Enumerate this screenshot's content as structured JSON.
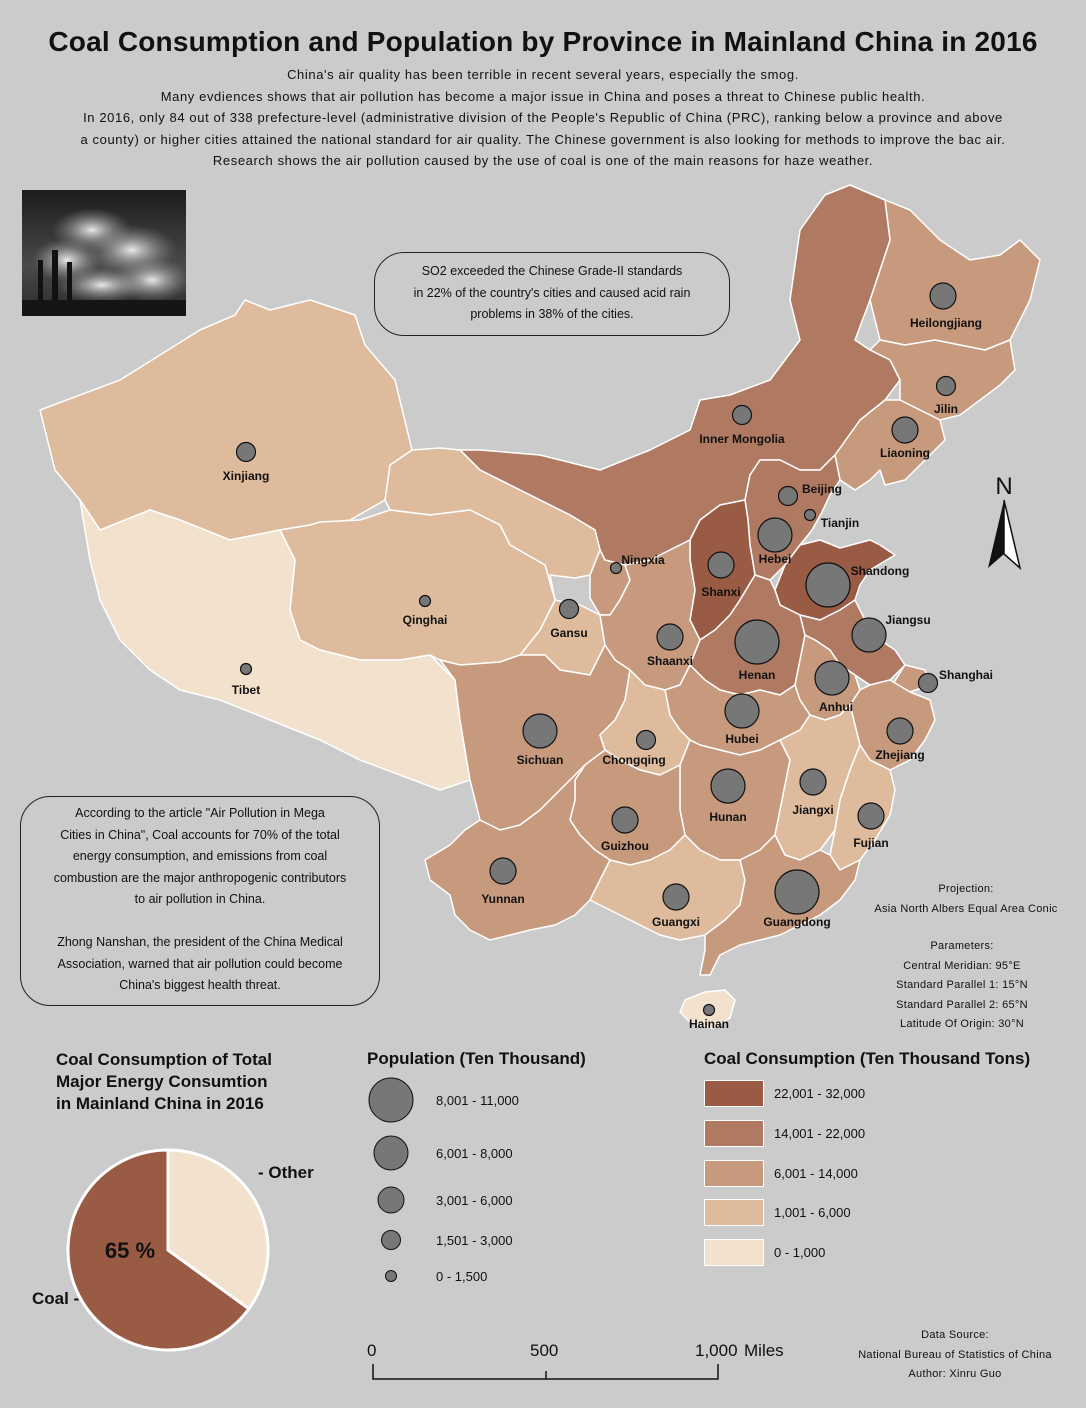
{
  "title": "Coal Consumption and Population by Province in Mainland China in 2016",
  "intro_lines": [
    "China's air quality has been terrible in recent several years, especially the smog.",
    "Many evdiences shows that air pollution has become a major issue in China and poses a threat to Chinese public health.",
    "In 2016, only 84 out of 338 prefecture-level (administrative division of the People's Republic of China (PRC), ranking below a province and above",
    "a county) or higher cities attained the national standard for air quality. The Chinese government is also looking for methods to improve the bac air.",
    "Research shows the air pollution caused by the use of coal is one of the main reasons for haze weather."
  ],
  "so2_note": [
    "SO2 exceeded the Chinese Grade-II standards",
    "in 22% of the country's cities and caused acid rain",
    "problems in 38% of the cities."
  ],
  "article_note": [
    "According to the article \"Air Pollution in Mega",
    "Cities in China\", Coal accounts for 70% of the total",
    "energy consumption, and emissions from coal",
    "combustion are the major anthropogenic contributors",
    "to air pollution in China.",
    "",
    "Zhong Nanshan, the president of the China Medical",
    "Association, warned that air pollution could become",
    "China's biggest health threat."
  ],
  "north_label": "N",
  "projection": {
    "heading": "Projection:",
    "name": "Asia North Albers Equal Area Conic",
    "params_heading": "Parameters:",
    "params": [
      "Central Meridian: 95°E",
      "Standard Parallel 1: 15°N",
      "Standard Parallel 2: 65°N",
      "Latitude Of Origin: 30°N"
    ]
  },
  "colors": {
    "class5": "#9a5b45",
    "class4": "#b07a62",
    "class3": "#c7997d",
    "class2": "#ddbb9c",
    "class1": "#f2e2cd",
    "circle": "#777777",
    "background": "#cbcbcb"
  },
  "provinces": [
    {
      "name": "Heilongjiang",
      "coal_class": 3,
      "pop_class": 3
    },
    {
      "name": "Jilin",
      "coal_class": 3,
      "pop_class": 2
    },
    {
      "name": "Liaoning",
      "coal_class": 3,
      "pop_class": 3
    },
    {
      "name": "Inner Mongolia",
      "coal_class": 4,
      "pop_class": 2
    },
    {
      "name": "Beijing",
      "coal_class": 2,
      "pop_class": 2
    },
    {
      "name": "Tianjin",
      "coal_class": 3,
      "pop_class": 1
    },
    {
      "name": "Hebei",
      "coal_class": 4,
      "pop_class": 4
    },
    {
      "name": "Shanxi",
      "coal_class": 5,
      "pop_class": 3
    },
    {
      "name": "Shandong",
      "coal_class": 5,
      "pop_class": 5
    },
    {
      "name": "Ningxia",
      "coal_class": 3,
      "pop_class": 1
    },
    {
      "name": "Gansu",
      "coal_class": 2,
      "pop_class": 2
    },
    {
      "name": "Shaanxi",
      "coal_class": 3,
      "pop_class": 3
    },
    {
      "name": "Henan",
      "coal_class": 4,
      "pop_class": 5
    },
    {
      "name": "Jiangsu",
      "coal_class": 4,
      "pop_class": 4
    },
    {
      "name": "Shanghai",
      "coal_class": 3,
      "pop_class": 2
    },
    {
      "name": "Anhui",
      "coal_class": 3,
      "pop_class": 4
    },
    {
      "name": "Hubei",
      "coal_class": 3,
      "pop_class": 4
    },
    {
      "name": "Zhejiang",
      "coal_class": 3,
      "pop_class": 3
    },
    {
      "name": "Xinjiang",
      "coal_class": 2,
      "pop_class": 2
    },
    {
      "name": "Qinghai",
      "coal_class": 2,
      "pop_class": 1
    },
    {
      "name": "Tibet",
      "coal_class": 1,
      "pop_class": 1
    },
    {
      "name": "Sichuan",
      "coal_class": 3,
      "pop_class": 4
    },
    {
      "name": "Chongqing",
      "coal_class": 2,
      "pop_class": 2
    },
    {
      "name": "Hunan",
      "coal_class": 3,
      "pop_class": 4
    },
    {
      "name": "Jiangxi",
      "coal_class": 2,
      "pop_class": 3
    },
    {
      "name": "Fujian",
      "coal_class": 2,
      "pop_class": 3
    },
    {
      "name": "Guizhou",
      "coal_class": 3,
      "pop_class": 3
    },
    {
      "name": "Yunnan",
      "coal_class": 3,
      "pop_class": 3
    },
    {
      "name": "Guangxi",
      "coal_class": 2,
      "pop_class": 3
    },
    {
      "name": "Guangdong",
      "coal_class": 3,
      "pop_class": 5
    },
    {
      "name": "Hainan",
      "coal_class": 1,
      "pop_class": 1
    }
  ],
  "pie": {
    "title": [
      "Coal Consumption of Total",
      "Major Energy Consumtion",
      "in Mainland China in 2016"
    ],
    "percent_label": "65 %",
    "slices": [
      {
        "label": "Coal -",
        "value": 65,
        "color": "#9a5b45"
      },
      {
        "label": "- Other",
        "value": 35,
        "color": "#f2e2cd"
      }
    ]
  },
  "population_legend": {
    "title": "Population (Ten Thousand)",
    "classes": [
      "8,001 - 11,000",
      "6,001 - 8,000",
      "3,001 - 6,000",
      "1,501 - 3,000",
      "0 - 1,500"
    ]
  },
  "coal_legend": {
    "title": "Coal Consumption (Ten Thousand Tons)",
    "classes": [
      {
        "label": "22,001 - 32,000",
        "color": "#9a5b45"
      },
      {
        "label": "14,001 - 22,000",
        "color": "#b07a62"
      },
      {
        "label": "6,001 - 14,000",
        "color": "#c7997d"
      },
      {
        "label": "1,001 - 6,000",
        "color": "#ddbb9c"
      },
      {
        "label": "0 - 1,000",
        "color": "#f2e2cd"
      }
    ]
  },
  "scale_bar": {
    "ticks": [
      "0",
      "500",
      "1,000"
    ],
    "unit": "Miles"
  },
  "source": {
    "heading": "Data Source:",
    "name": "National Bureau of Statistics of China",
    "author": "Author: Xinru Guo"
  }
}
